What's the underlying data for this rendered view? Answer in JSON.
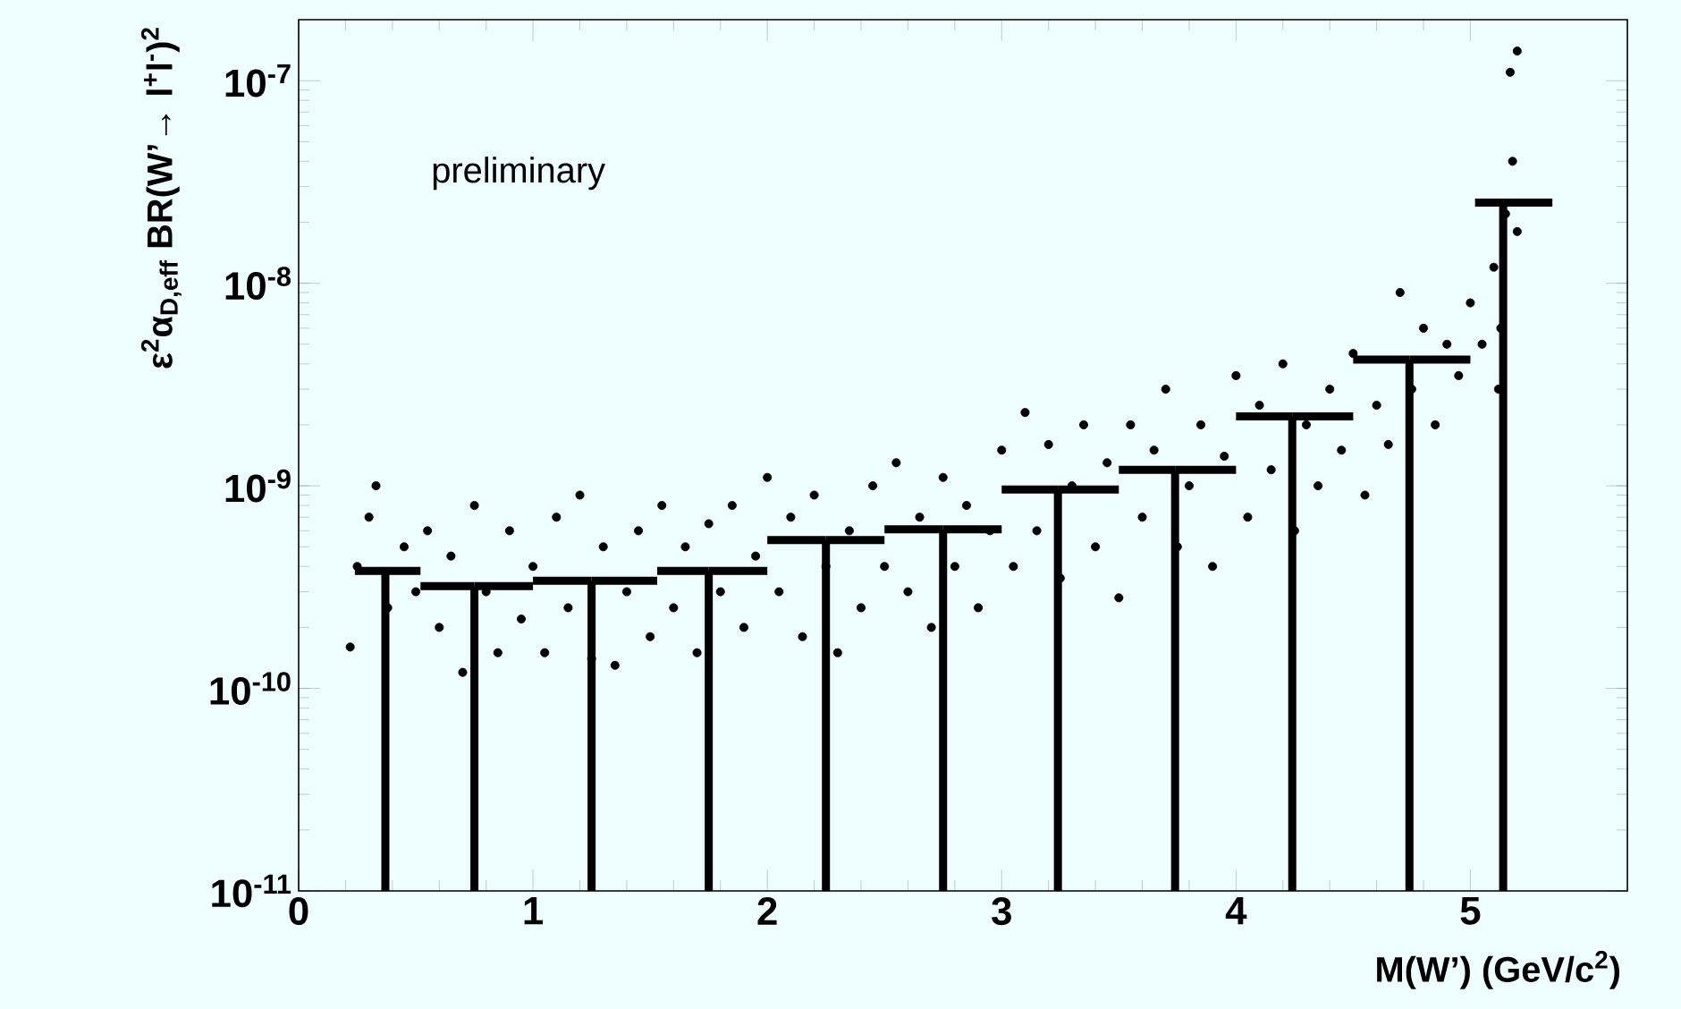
{
  "chart_data": {
    "type": "scatter",
    "xlabel": "M(W’) (GeV/c$^{2}$)",
    "ylabel": "ε$^{2}$α$_{D,eff}$ BR(W’→ l$^{+}$l$^{-}$)$^{2}$",
    "annotations": [
      "preliminary"
    ],
    "log": "y",
    "marker": "circle",
    "xlim": [
      0,
      5.67
    ],
    "ylim": [
      1e-11,
      2e-07
    ],
    "xticks": [
      0,
      1,
      2,
      3,
      4,
      5
    ],
    "yticks": [
      {
        "value": 1e-11,
        "label": "10$^{-11}$"
      },
      {
        "value": 1e-10,
        "label": "10$^{-10}$"
      },
      {
        "value": 1e-09,
        "label": "10$^{-9}$"
      },
      {
        "value": 1e-08,
        "label": "10$^{-8}$"
      },
      {
        "value": 1e-07,
        "label": "10$^{-7}$"
      }
    ],
    "series": [
      {
        "color": "#000000",
        "x": [
          0.22,
          0.25,
          0.3,
          0.33,
          0.38,
          0.45,
          0.5,
          0.55,
          0.6,
          0.65,
          0.7,
          0.75,
          0.8,
          0.85,
          0.9,
          0.95,
          1.0,
          1.05,
          1.1,
          1.15,
          1.2,
          1.25,
          1.3,
          1.35,
          1.4,
          1.45,
          1.5,
          1.55,
          1.6,
          1.65,
          1.7,
          1.75,
          1.8,
          1.85,
          1.9,
          1.95,
          2.0,
          2.05,
          2.1,
          2.15,
          2.2,
          2.25,
          2.3,
          2.35,
          2.4,
          2.45,
          2.5,
          2.55,
          2.6,
          2.65,
          2.7,
          2.75,
          2.8,
          2.85,
          2.9,
          2.95,
          3.0,
          3.05,
          3.1,
          3.15,
          3.2,
          3.25,
          3.3,
          3.35,
          3.4,
          3.45,
          3.5,
          3.55,
          3.6,
          3.65,
          3.7,
          3.75,
          3.8,
          3.85,
          3.9,
          3.95,
          4.0,
          4.05,
          4.1,
          4.15,
          4.2,
          4.25,
          4.3,
          4.35,
          4.4,
          4.45,
          4.5,
          4.55,
          4.6,
          4.65,
          4.7,
          4.75,
          4.8,
          4.85,
          4.9,
          4.95,
          5.0,
          5.05,
          5.1,
          5.12,
          5.15,
          5.18,
          5.2,
          5.17,
          5.2,
          5.13
        ],
        "values": [
          1.6e-10,
          4e-10,
          7e-10,
          1e-09,
          2.5e-10,
          5e-10,
          3e-10,
          6e-10,
          2e-10,
          4.5e-10,
          1.2e-10,
          8e-10,
          3e-10,
          1.5e-10,
          6e-10,
          2.2e-10,
          4e-10,
          1.5e-10,
          7e-10,
          2.5e-10,
          9e-10,
          1.4e-10,
          5e-10,
          1.3e-10,
          3e-10,
          6e-10,
          1.8e-10,
          8e-10,
          2.5e-10,
          5e-10,
          1.5e-10,
          6.5e-10,
          3e-10,
          8e-10,
          2e-10,
          4.5e-10,
          1.1e-09,
          3e-10,
          7e-10,
          1.8e-10,
          9e-10,
          4e-10,
          1.5e-10,
          6e-10,
          2.5e-10,
          1e-09,
          4e-10,
          1.3e-09,
          3e-10,
          7e-10,
          2e-10,
          1.1e-09,
          4e-10,
          8e-10,
          2.5e-10,
          6e-10,
          1.5e-09,
          4e-10,
          2.3e-09,
          6e-10,
          1.6e-09,
          3.5e-10,
          1e-09,
          2e-09,
          5e-10,
          1.3e-09,
          2.8e-10,
          2e-09,
          7e-10,
          1.5e-09,
          3e-09,
          5e-10,
          1e-09,
          2e-09,
          4e-10,
          1.4e-09,
          3.5e-09,
          7e-10,
          2.5e-09,
          1.2e-09,
          4e-09,
          6e-10,
          2e-09,
          1e-09,
          3e-09,
          1.5e-09,
          4.5e-09,
          9e-10,
          2.5e-09,
          1.6e-09,
          9e-09,
          3e-09,
          6e-09,
          2e-09,
          5e-09,
          3.5e-09,
          8e-09,
          5e-09,
          1.2e-08,
          3e-09,
          2.2e-08,
          4e-08,
          1.4e-07,
          1.1e-07,
          1.8e-08,
          6e-09
        ]
      },
      {
        "type": "bar",
        "color": "#000000",
        "x": [
          0.37,
          0.75,
          1.25,
          1.75,
          2.25,
          2.75,
          3.24,
          3.74,
          4.24,
          4.74,
          5.14
        ],
        "values": [
          3.8e-10,
          3.2e-10,
          3.4e-10,
          3.8e-10,
          5.4e-10,
          6.1e-10,
          9.6e-10,
          1.2e-09,
          2.2e-09,
          4.2e-09,
          2.5e-08
        ],
        "xerrors": [
          [
            0.24,
            0.52
          ],
          [
            0.52,
            1.0
          ],
          [
            1.0,
            1.53
          ],
          [
            1.53,
            2.0
          ],
          [
            2.0,
            2.5
          ],
          [
            2.5,
            3.0
          ],
          [
            3.0,
            3.5
          ],
          [
            3.5,
            4.0
          ],
          [
            4.0,
            4.5
          ],
          [
            4.5,
            5.0
          ],
          [
            5.02,
            5.35
          ]
        ]
      }
    ]
  }
}
